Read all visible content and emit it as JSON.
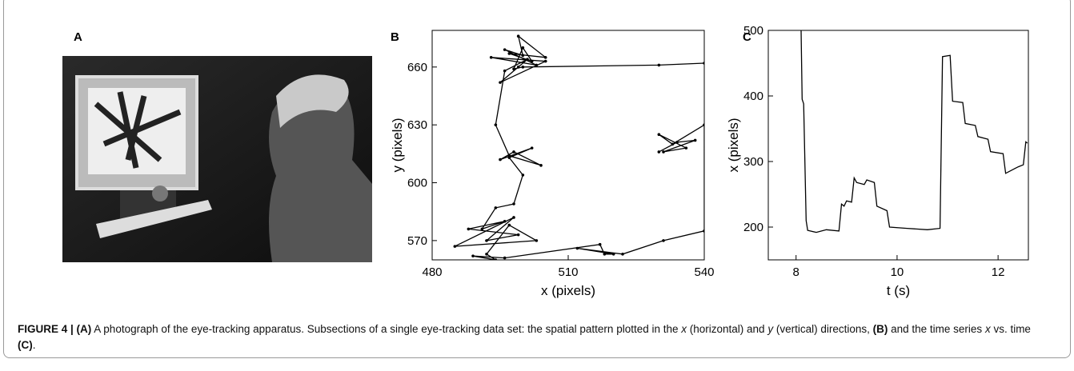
{
  "panel_labels": [
    "A",
    "B",
    "C"
  ],
  "caption": [
    "FIGURE 4 | (A)",
    " A photograph of the eye-tracking apparatus. Subsections of a single eye-tracking data set: the spatial pattern plotted in the ",
    "x",
    " (horizontal) and ",
    "y",
    " (vertical) directions, ",
    "(B)",
    " and the time series ",
    "x",
    " vs. time ",
    "(C)",
    "."
  ],
  "chart_data": [
    {
      "type": "line",
      "xlabel": "x (pixels)",
      "ylabel": "y (pixels)",
      "color": "#000000",
      "markers": true,
      "xlim": [
        480,
        540
      ],
      "ylim": [
        560,
        679
      ],
      "xticks": [
        480,
        510,
        540
      ],
      "yticks": [
        570,
        600,
        630,
        660
      ],
      "x": [
        540,
        530,
        500,
        498,
        500,
        502,
        497,
        505,
        499,
        500,
        496,
        503,
        493,
        505,
        495,
        499,
        501,
        496,
        494,
        497,
        504,
        498,
        495,
        502,
        497,
        500,
        498,
        494,
        491,
        496,
        488,
        499,
        492,
        498,
        485,
        503,
        497,
        492,
        494,
        489,
        496,
        517,
        518,
        520,
        512,
        522,
        531,
        540,
        540,
        533,
        530,
        536,
        531,
        538,
        534,
        530
      ],
      "y": [
        662,
        661,
        660,
        659,
        670,
        663,
        667,
        665,
        676,
        666,
        669,
        661,
        665,
        663,
        652,
        660,
        664,
        658,
        630,
        614,
        609,
        616,
        612,
        618,
        613,
        604,
        589,
        587,
        576,
        580,
        576,
        573,
        570,
        582,
        567,
        570,
        578,
        563,
        560,
        562,
        561,
        568,
        563,
        563,
        566,
        563,
        570,
        575,
        630,
        620,
        625,
        618,
        616,
        622,
        621,
        616
      ]
    },
    {
      "type": "line",
      "xlabel": "t (s)",
      "ylabel": "x (pixels)",
      "color": "#000000",
      "xlim": [
        7.45,
        12.6
      ],
      "ylim": [
        150,
        500
      ],
      "xticks": [
        8,
        10,
        12
      ],
      "yticks": [
        200,
        300,
        400,
        500
      ],
      "x": [
        8.1,
        8.12,
        8.15,
        8.2,
        8.23,
        8.4,
        8.6,
        8.85,
        8.9,
        8.95,
        9.0,
        9.1,
        9.15,
        9.2,
        9.35,
        9.4,
        9.55,
        9.6,
        9.8,
        9.85,
        10.2,
        10.6,
        10.85,
        10.9,
        11.05,
        11.1,
        11.3,
        11.35,
        11.55,
        11.6,
        11.8,
        11.85,
        12.1,
        12.15,
        12.35,
        12.4,
        12.5,
        12.55,
        12.58
      ],
      "values": [
        500,
        395,
        388,
        210,
        195,
        192,
        196,
        194,
        235,
        232,
        240,
        238,
        275,
        268,
        265,
        272,
        268,
        232,
        225,
        200,
        198,
        196,
        198,
        460,
        462,
        392,
        390,
        358,
        355,
        338,
        334,
        315,
        312,
        282,
        290,
        292,
        295,
        330,
        328
      ]
    }
  ]
}
